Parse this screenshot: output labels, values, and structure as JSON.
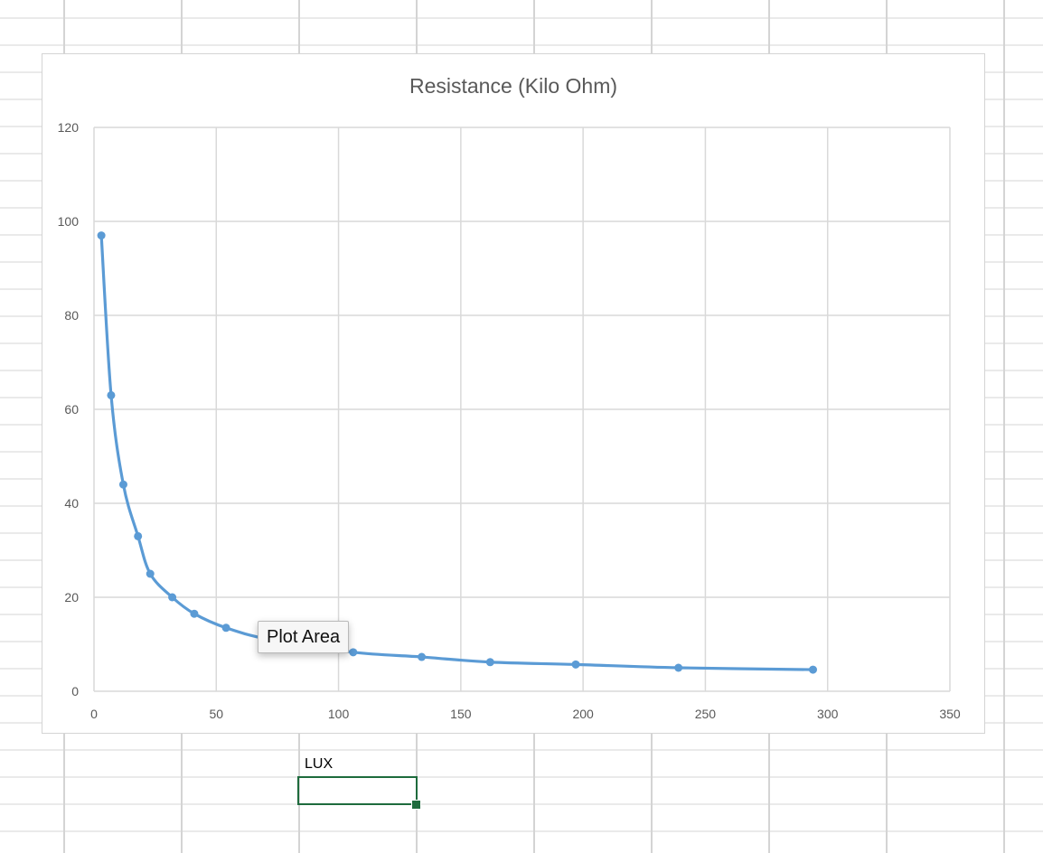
{
  "sheet": {
    "cell_label": "LUX",
    "grid_color": "#d4d4d4",
    "selection_color": "#1e6b3d"
  },
  "tooltip": {
    "text": "Plot Area"
  },
  "chart_data": {
    "type": "line",
    "title": "Resistance (Kilo Ohm)",
    "xlabel": "",
    "ylabel": "",
    "xlim": [
      0,
      350
    ],
    "ylim": [
      0,
      120
    ],
    "xticks": [
      0,
      50,
      100,
      150,
      200,
      250,
      300,
      350
    ],
    "yticks": [
      0,
      20,
      40,
      60,
      80,
      100,
      120
    ],
    "grid": true,
    "legend": "none",
    "smooth": true,
    "color": "#5b9bd5",
    "series": [
      {
        "x": [
          3,
          7,
          12,
          18,
          23,
          32,
          41,
          54,
          72,
          106,
          134,
          162,
          197,
          239,
          294
        ],
        "y": [
          97,
          63,
          44,
          33,
          25,
          20,
          16.5,
          13.5,
          11,
          8.3,
          7.3,
          6.2,
          5.7,
          5,
          4.6
        ]
      }
    ]
  }
}
